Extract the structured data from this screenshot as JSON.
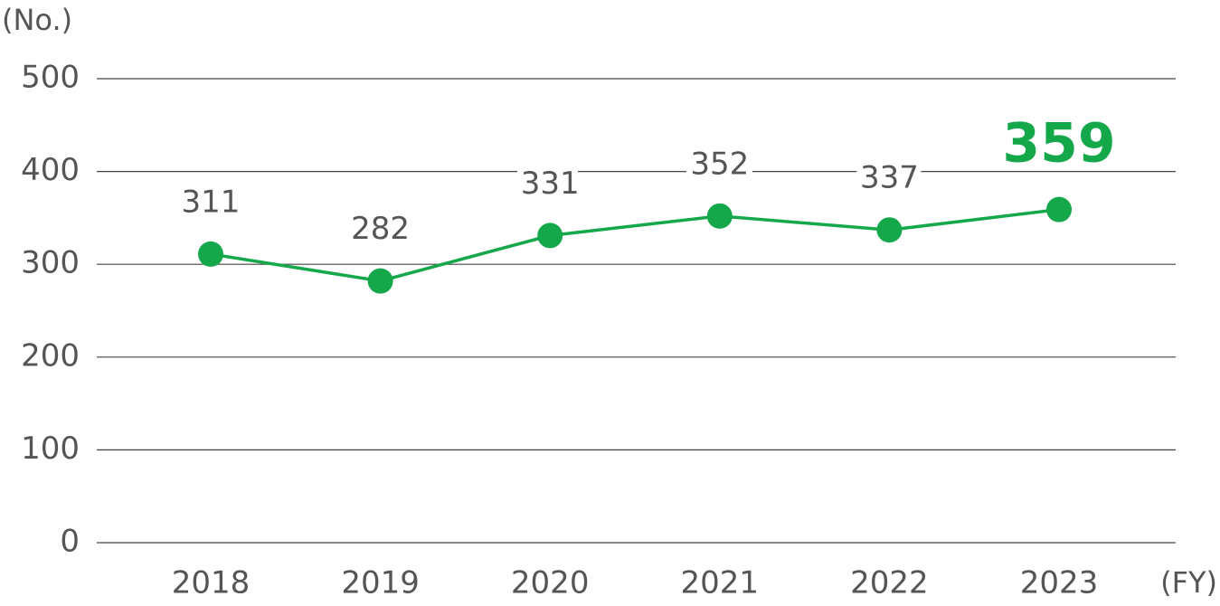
{
  "chart_data": {
    "type": "line",
    "y_label": "(No.)",
    "x_label": "(FY)",
    "categories": [
      "2018",
      "2019",
      "2020",
      "2021",
      "2022",
      "2023"
    ],
    "series": [
      {
        "name": "No.",
        "color": "#14a84b",
        "values": [
          311,
          282,
          331,
          352,
          337,
          359
        ]
      }
    ],
    "ylim": [
      0,
      500
    ],
    "yticks": [
      0,
      100,
      200,
      300,
      400,
      500
    ],
    "grid": true
  }
}
